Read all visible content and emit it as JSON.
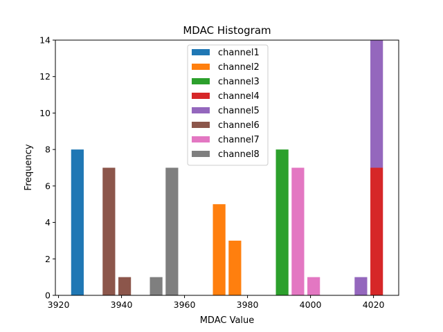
{
  "chart_data": {
    "type": "bar",
    "stacked": true,
    "title": "MDAC Histogram",
    "xlabel": "MDAC Value",
    "ylabel": "Frequency",
    "xlim": [
      3919,
      4028
    ],
    "ylim": [
      0,
      14
    ],
    "xticks": [
      3920,
      3940,
      3960,
      3980,
      4000,
      4020
    ],
    "yticks": [
      0,
      2,
      4,
      6,
      8,
      10,
      12,
      14
    ],
    "bin_width": 4,
    "legend_position": "top-center",
    "series": [
      {
        "name": "channel1",
        "color": "#1f77b4",
        "bins": [
          {
            "x": 3926,
            "count": 8
          }
        ]
      },
      {
        "name": "channel2",
        "color": "#ff7f0e",
        "bins": [
          {
            "x": 3971,
            "count": 5
          },
          {
            "x": 3976,
            "count": 3
          }
        ]
      },
      {
        "name": "channel3",
        "color": "#2ca02c",
        "bins": [
          {
            "x": 3991,
            "count": 8
          }
        ]
      },
      {
        "name": "channel4",
        "color": "#d62728",
        "bins": [
          {
            "x": 4021,
            "count": 7
          }
        ]
      },
      {
        "name": "channel5",
        "color": "#9467bd",
        "bins": [
          {
            "x": 4016,
            "count": 1
          },
          {
            "x": 4021,
            "count": 7
          }
        ]
      },
      {
        "name": "channel6",
        "color": "#8c564b",
        "bins": [
          {
            "x": 3936,
            "count": 7
          },
          {
            "x": 3941,
            "count": 1
          }
        ]
      },
      {
        "name": "channel7",
        "color": "#e377c2",
        "bins": [
          {
            "x": 3996,
            "count": 7
          },
          {
            "x": 4001,
            "count": 1
          }
        ]
      },
      {
        "name": "channel8",
        "color": "#7f7f7f",
        "bins": [
          {
            "x": 3951,
            "count": 1
          },
          {
            "x": 3956,
            "count": 7
          }
        ]
      }
    ]
  }
}
